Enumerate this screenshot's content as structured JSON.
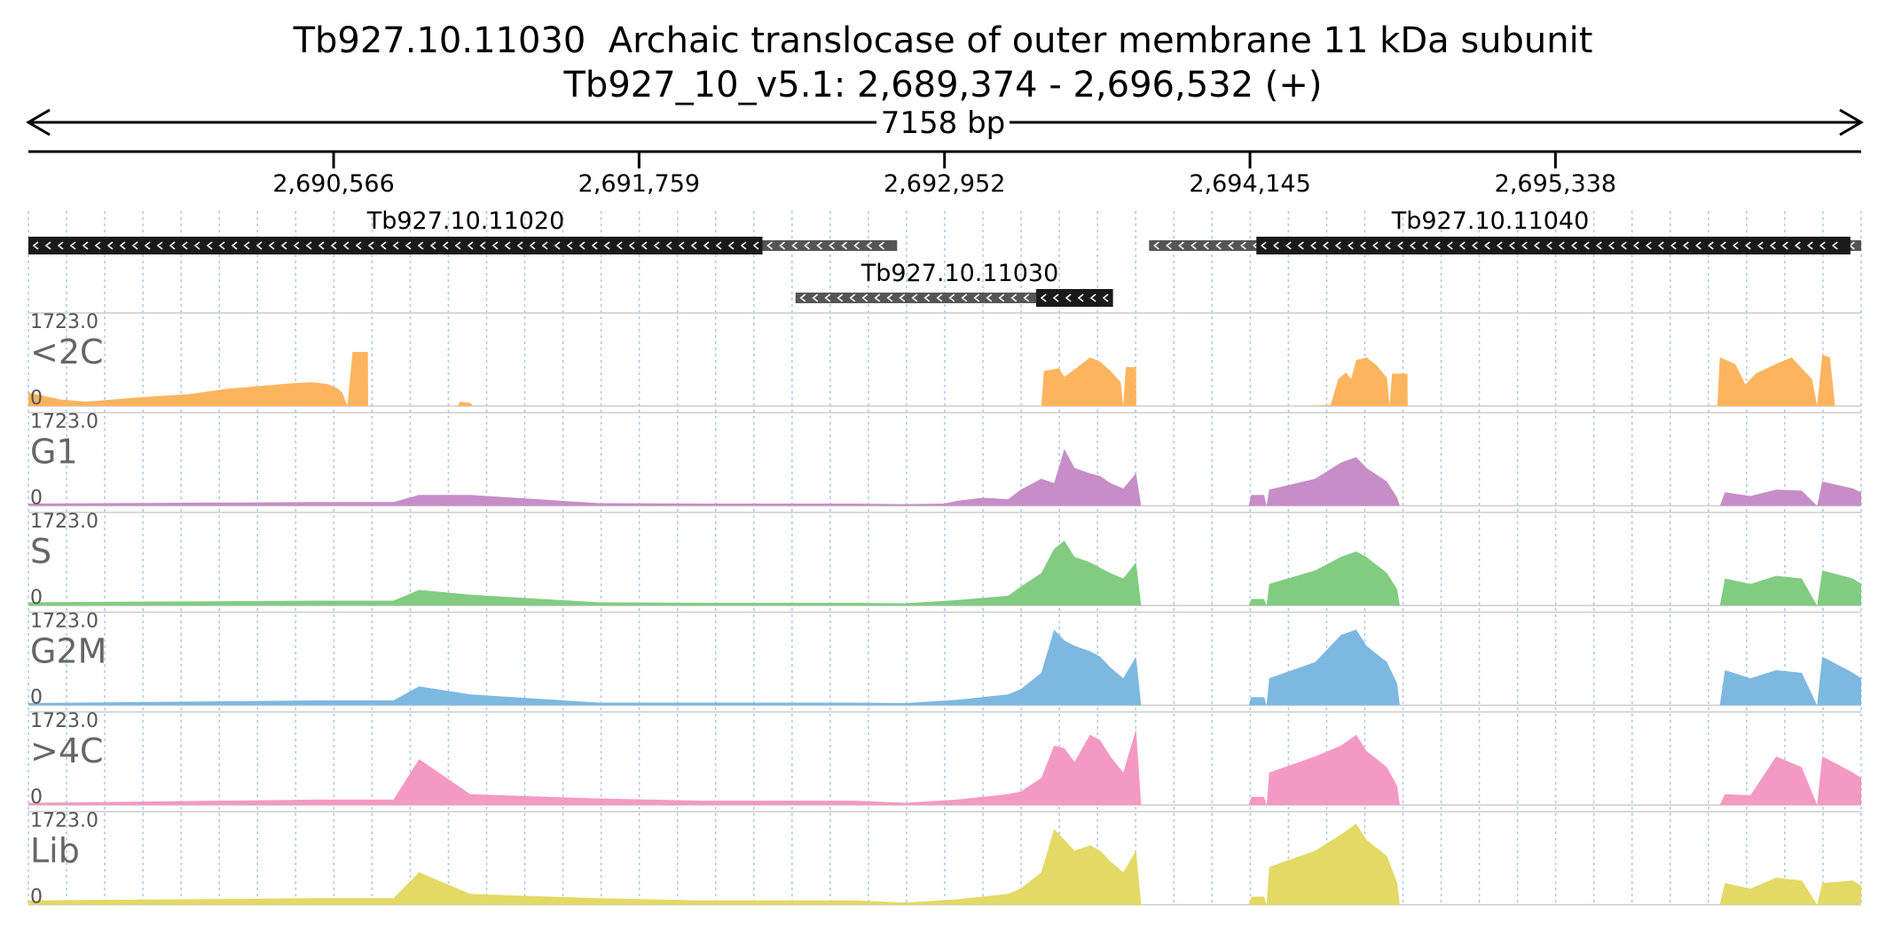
{
  "header": {
    "title_gene": "Tb927.10.11030  Archaic translocase of outer membrane 11 kDa subunit",
    "title_region": "Tb927_10_v5.1: 2,689,374 - 2,696,532 (+)",
    "span_label": "7158 bp"
  },
  "chart_data": {
    "type": "area",
    "title": "Tb927.10.11030  Archaic translocase of outer membrane 11 kDa subunit",
    "subtitle": "Tb927_10_v5.1: 2,689,374 - 2,696,532 (+)",
    "xlabel": "",
    "ylabel": "",
    "xlim": [
      2689374,
      2696532
    ],
    "ylim": [
      0,
      1723.0
    ],
    "x_ticks": [
      {
        "pos": 2690566,
        "label": "2,690,566"
      },
      {
        "pos": 2691759,
        "label": "2,691,759"
      },
      {
        "pos": 2692952,
        "label": "2,692,952"
      },
      {
        "pos": 2694145,
        "label": "2,694,145"
      },
      {
        "pos": 2695338,
        "label": "2,695,338"
      }
    ],
    "genes": [
      {
        "name": "Tb927.10.11020",
        "strand": "-",
        "utr": [
          2692241,
          2692767
        ],
        "cds": [
          2689374,
          2692241
        ]
      },
      {
        "name": "Tb927.10.11040",
        "strand": "-",
        "utr": [
          2693751,
          2696532
        ],
        "cds": [
          2694170,
          2696490
        ]
      },
      {
        "name": "Tb927.10.11030",
        "strand": "-",
        "utr": [
          2692370,
          2693415
        ],
        "cds": [
          2693310,
          2693610
        ]
      }
    ],
    "series": [
      {
        "name": "<2C",
        "color": "#fdb45e",
        "max_label": "1723.0",
        "min_label": "0",
        "points": [
          [
            2689374,
            250
          ],
          [
            2689500,
            120
          ],
          [
            2689600,
            80
          ],
          [
            2689800,
            160
          ],
          [
            2690000,
            220
          ],
          [
            2690150,
            320
          ],
          [
            2690300,
            380
          ],
          [
            2690400,
            420
          ],
          [
            2690480,
            440
          ],
          [
            2690540,
            410
          ],
          [
            2690580,
            330
          ],
          [
            2690600,
            250
          ],
          [
            2690620,
            0
          ],
          [
            2690640,
            1000
          ],
          [
            2690700,
            1000
          ],
          [
            2690701,
            0
          ],
          [
            2690440,
            0
          ],
          [
            2690450,
            20
          ],
          [
            2690460,
            0
          ],
          [
            2691050,
            0
          ],
          [
            2691060,
            80
          ],
          [
            2691100,
            60
          ],
          [
            2691110,
            0
          ],
          [
            2693330,
            0
          ],
          [
            2693340,
            650
          ],
          [
            2693400,
            700
          ],
          [
            2693420,
            540
          ],
          [
            2693480,
            750
          ],
          [
            2693520,
            900
          ],
          [
            2693560,
            820
          ],
          [
            2693600,
            650
          ],
          [
            2693640,
            440
          ],
          [
            2693650,
            0
          ],
          [
            2693660,
            720
          ],
          [
            2693700,
            720
          ],
          [
            2693701,
            0
          ],
          [
            2694380,
            0
          ],
          [
            2694460,
            20
          ],
          [
            2694490,
            500
          ],
          [
            2694520,
            620
          ],
          [
            2694540,
            500
          ],
          [
            2694560,
            850
          ],
          [
            2694600,
            900
          ],
          [
            2694640,
            750
          ],
          [
            2694680,
            520
          ],
          [
            2694690,
            0
          ],
          [
            2694700,
            600
          ],
          [
            2694760,
            600
          ],
          [
            2694761,
            0
          ],
          [
            2695970,
            0
          ],
          [
            2695980,
            900
          ],
          [
            2696040,
            780
          ],
          [
            2696080,
            400
          ],
          [
            2696120,
            600
          ],
          [
            2696200,
            780
          ],
          [
            2696260,
            900
          ],
          [
            2696300,
            700
          ],
          [
            2696340,
            500
          ],
          [
            2696360,
            0
          ],
          [
            2696380,
            950
          ],
          [
            2696410,
            900
          ],
          [
            2696430,
            0
          ]
        ]
      },
      {
        "name": "G1",
        "color": "#c68dc6",
        "max_label": "1723.0",
        "min_label": "0",
        "points": [
          [
            2689374,
            40
          ],
          [
            2690500,
            70
          ],
          [
            2690800,
            70
          ],
          [
            2690900,
            200
          ],
          [
            2691100,
            200
          ],
          [
            2691600,
            50
          ],
          [
            2692000,
            40
          ],
          [
            2692600,
            40
          ],
          [
            2692800,
            30
          ],
          [
            2692950,
            40
          ],
          [
            2693000,
            90
          ],
          [
            2693100,
            150
          ],
          [
            2693200,
            120
          ],
          [
            2693250,
            300
          ],
          [
            2693330,
            500
          ],
          [
            2693380,
            420
          ],
          [
            2693420,
            1050
          ],
          [
            2693460,
            700
          ],
          [
            2693520,
            600
          ],
          [
            2693560,
            550
          ],
          [
            2693600,
            420
          ],
          [
            2693650,
            320
          ],
          [
            2693700,
            600
          ],
          [
            2693720,
            0
          ],
          [
            2694140,
            0
          ],
          [
            2694150,
            200
          ],
          [
            2694200,
            200
          ],
          [
            2694210,
            0
          ],
          [
            2694220,
            300
          ],
          [
            2694400,
            500
          ],
          [
            2694500,
            800
          ],
          [
            2694560,
            900
          ],
          [
            2694600,
            700
          ],
          [
            2694680,
            450
          ],
          [
            2694720,
            150
          ],
          [
            2694730,
            0
          ],
          [
            2695980,
            0
          ],
          [
            2696000,
            250
          ],
          [
            2696100,
            180
          ],
          [
            2696200,
            300
          ],
          [
            2696300,
            280
          ],
          [
            2696360,
            0
          ],
          [
            2696380,
            450
          ],
          [
            2696500,
            320
          ],
          [
            2696532,
            250
          ]
        ]
      },
      {
        "name": "S",
        "color": "#82cc82",
        "max_label": "1723.0",
        "min_label": "0",
        "points": [
          [
            2689374,
            60
          ],
          [
            2690500,
            90
          ],
          [
            2690800,
            90
          ],
          [
            2690900,
            290
          ],
          [
            2691100,
            200
          ],
          [
            2691600,
            60
          ],
          [
            2692000,
            50
          ],
          [
            2692600,
            50
          ],
          [
            2692800,
            40
          ],
          [
            2693000,
            100
          ],
          [
            2693200,
            180
          ],
          [
            2693250,
            350
          ],
          [
            2693330,
            600
          ],
          [
            2693380,
            1050
          ],
          [
            2693420,
            1200
          ],
          [
            2693460,
            900
          ],
          [
            2693520,
            800
          ],
          [
            2693560,
            700
          ],
          [
            2693600,
            600
          ],
          [
            2693650,
            500
          ],
          [
            2693700,
            800
          ],
          [
            2693720,
            0
          ],
          [
            2694140,
            0
          ],
          [
            2694150,
            120
          ],
          [
            2694200,
            120
          ],
          [
            2694210,
            0
          ],
          [
            2694220,
            400
          ],
          [
            2694400,
            650
          ],
          [
            2694500,
            900
          ],
          [
            2694560,
            1000
          ],
          [
            2694600,
            900
          ],
          [
            2694680,
            600
          ],
          [
            2694720,
            300
          ],
          [
            2694730,
            0
          ],
          [
            2695980,
            0
          ],
          [
            2696000,
            500
          ],
          [
            2696100,
            400
          ],
          [
            2696200,
            550
          ],
          [
            2696300,
            500
          ],
          [
            2696360,
            0
          ],
          [
            2696380,
            650
          ],
          [
            2696500,
            500
          ],
          [
            2696532,
            400
          ]
        ]
      },
      {
        "name": "G2M",
        "color": "#7db8e0",
        "max_label": "1723.0",
        "min_label": "0",
        "points": [
          [
            2689374,
            40
          ],
          [
            2690500,
            90
          ],
          [
            2690800,
            90
          ],
          [
            2690900,
            350
          ],
          [
            2691100,
            200
          ],
          [
            2691600,
            50
          ],
          [
            2692000,
            50
          ],
          [
            2692600,
            50
          ],
          [
            2692800,
            40
          ],
          [
            2693000,
            100
          ],
          [
            2693200,
            200
          ],
          [
            2693250,
            300
          ],
          [
            2693330,
            600
          ],
          [
            2693380,
            1400
          ],
          [
            2693420,
            1200
          ],
          [
            2693460,
            1100
          ],
          [
            2693520,
            1000
          ],
          [
            2693560,
            900
          ],
          [
            2693600,
            700
          ],
          [
            2693650,
            500
          ],
          [
            2693700,
            900
          ],
          [
            2693720,
            0
          ],
          [
            2694140,
            0
          ],
          [
            2694150,
            150
          ],
          [
            2694200,
            150
          ],
          [
            2694210,
            0
          ],
          [
            2694220,
            500
          ],
          [
            2694400,
            800
          ],
          [
            2694500,
            1300
          ],
          [
            2694560,
            1400
          ],
          [
            2694600,
            1100
          ],
          [
            2694680,
            800
          ],
          [
            2694720,
            400
          ],
          [
            2694730,
            0
          ],
          [
            2695980,
            0
          ],
          [
            2696000,
            650
          ],
          [
            2696100,
            500
          ],
          [
            2696200,
            650
          ],
          [
            2696300,
            600
          ],
          [
            2696360,
            0
          ],
          [
            2696380,
            900
          ],
          [
            2696500,
            600
          ],
          [
            2696532,
            500
          ]
        ]
      },
      {
        "name": ">4C",
        "color": "#f499c4",
        "max_label": "1723.0",
        "min_label": "0",
        "points": [
          [
            2689374,
            40
          ],
          [
            2690500,
            100
          ],
          [
            2690800,
            100
          ],
          [
            2690900,
            850
          ],
          [
            2691100,
            200
          ],
          [
            2691600,
            120
          ],
          [
            2692000,
            80
          ],
          [
            2692600,
            80
          ],
          [
            2692800,
            40
          ],
          [
            2693000,
            100
          ],
          [
            2693200,
            200
          ],
          [
            2693250,
            250
          ],
          [
            2693330,
            500
          ],
          [
            2693380,
            1100
          ],
          [
            2693420,
            1050
          ],
          [
            2693460,
            800
          ],
          [
            2693520,
            1300
          ],
          [
            2693560,
            1200
          ],
          [
            2693600,
            900
          ],
          [
            2693650,
            600
          ],
          [
            2693700,
            1400
          ],
          [
            2693720,
            0
          ],
          [
            2694140,
            0
          ],
          [
            2694150,
            150
          ],
          [
            2694200,
            150
          ],
          [
            2694210,
            0
          ],
          [
            2694220,
            600
          ],
          [
            2694400,
            900
          ],
          [
            2694500,
            1100
          ],
          [
            2694560,
            1300
          ],
          [
            2694600,
            1000
          ],
          [
            2694680,
            700
          ],
          [
            2694720,
            350
          ],
          [
            2694730,
            0
          ],
          [
            2695980,
            0
          ],
          [
            2696000,
            200
          ],
          [
            2696100,
            180
          ],
          [
            2696200,
            900
          ],
          [
            2696300,
            700
          ],
          [
            2696360,
            0
          ],
          [
            2696380,
            900
          ],
          [
            2696500,
            600
          ],
          [
            2696532,
            500
          ]
        ]
      },
      {
        "name": "Lib",
        "color": "#e3d964",
        "max_label": "1723.0",
        "min_label": "0",
        "points": [
          [
            2689374,
            80
          ],
          [
            2690500,
            120
          ],
          [
            2690800,
            120
          ],
          [
            2690900,
            600
          ],
          [
            2691100,
            200
          ],
          [
            2691600,
            120
          ],
          [
            2692000,
            80
          ],
          [
            2692600,
            80
          ],
          [
            2692800,
            40
          ],
          [
            2693000,
            100
          ],
          [
            2693200,
            200
          ],
          [
            2693250,
            300
          ],
          [
            2693330,
            600
          ],
          [
            2693380,
            1400
          ],
          [
            2693420,
            1200
          ],
          [
            2693460,
            1000
          ],
          [
            2693520,
            1100
          ],
          [
            2693560,
            1000
          ],
          [
            2693600,
            800
          ],
          [
            2693650,
            600
          ],
          [
            2693700,
            1000
          ],
          [
            2693720,
            0
          ],
          [
            2694140,
            0
          ],
          [
            2694150,
            150
          ],
          [
            2694200,
            150
          ],
          [
            2694210,
            0
          ],
          [
            2694220,
            700
          ],
          [
            2694400,
            1000
          ],
          [
            2694500,
            1300
          ],
          [
            2694560,
            1500
          ],
          [
            2694600,
            1200
          ],
          [
            2694680,
            900
          ],
          [
            2694720,
            400
          ],
          [
            2694730,
            0
          ],
          [
            2695980,
            0
          ],
          [
            2696000,
            400
          ],
          [
            2696100,
            300
          ],
          [
            2696200,
            500
          ],
          [
            2696300,
            450
          ],
          [
            2696360,
            0
          ],
          [
            2696380,
            400
          ],
          [
            2696500,
            450
          ],
          [
            2696532,
            350
          ]
        ]
      }
    ]
  }
}
